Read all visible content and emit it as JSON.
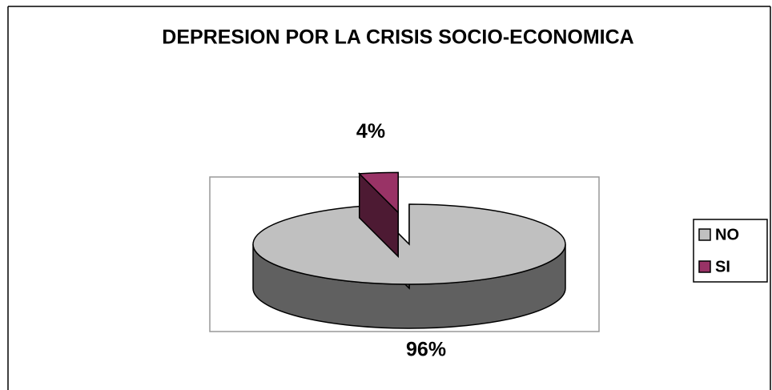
{
  "chart_data": {
    "type": "pie",
    "title": "DEPRESION POR LA CRISIS SOCIO-ECONOMICA",
    "categories": [
      "NO",
      "SI"
    ],
    "values": [
      96,
      4
    ],
    "value_labels": [
      "96%",
      "4%"
    ],
    "colors": [
      "#c0c0c0",
      "#993366"
    ],
    "explode": [
      false,
      true
    ],
    "legend": "right"
  }
}
